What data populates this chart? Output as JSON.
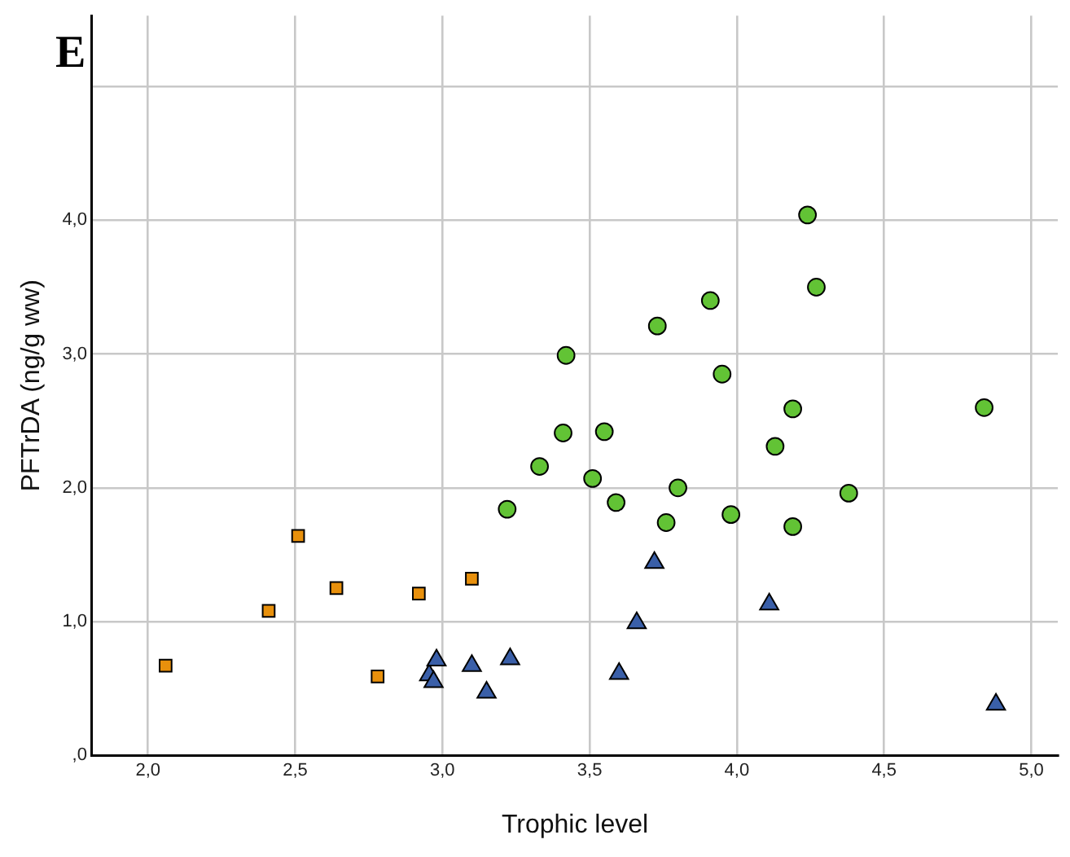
{
  "chart_data": {
    "type": "scatter",
    "title": "E",
    "xlabel": "Trophic level",
    "ylabel": "PFTrDA (ng/g ww)",
    "xlim": [
      1.81,
      5.09
    ],
    "ylim": [
      0,
      5.53
    ],
    "xticks": [
      {
        "value": 2,
        "label": "2,0"
      },
      {
        "value": 2.5,
        "label": "2,5"
      },
      {
        "value": 3,
        "label": "3,0"
      },
      {
        "value": 3.5,
        "label": "3,5"
      },
      {
        "value": 4,
        "label": "4,0"
      },
      {
        "value": 4.5,
        "label": "4,5"
      },
      {
        "value": 5,
        "label": "5,0"
      }
    ],
    "yticks": [
      {
        "value": 0,
        "label": ",0"
      },
      {
        "value": 1,
        "label": "1,0"
      },
      {
        "value": 2,
        "label": "2,0"
      },
      {
        "value": 3,
        "label": "3,0"
      },
      {
        "value": 4,
        "label": "4,0"
      },
      {
        "value": 5,
        "label": null
      }
    ],
    "grid": true,
    "legend": false,
    "series": [
      {
        "color": "#e8900c",
        "marker": "square",
        "x": [
          2.06,
          2.41,
          2.51,
          2.64,
          2.78,
          2.92,
          3.1
        ],
        "values": [
          0.67,
          1.08,
          1.64,
          1.25,
          0.59,
          1.21,
          1.32
        ]
      },
      {
        "color": "#3a5fa8",
        "marker": "triangle",
        "x": [
          2.955,
          2.97,
          2.98,
          3.1,
          3.15,
          3.23,
          3.6,
          3.66,
          3.72,
          4.11,
          4.88
        ],
        "values": [
          0.6,
          0.55,
          0.71,
          0.67,
          0.47,
          0.72,
          0.61,
          0.99,
          1.44,
          1.13,
          0.38
        ]
      },
      {
        "color": "#62c335",
        "marker": "circle",
        "x": [
          3.22,
          3.33,
          3.41,
          3.42,
          3.51,
          3.55,
          3.59,
          3.76,
          3.8,
          3.73,
          3.91,
          3.95,
          3.98,
          4.13,
          4.19,
          4.19,
          4.24,
          4.27,
          4.38,
          4.84
        ],
        "values": [
          1.84,
          2.16,
          2.41,
          2.99,
          2.07,
          2.42,
          1.89,
          1.74,
          2.0,
          3.21,
          3.4,
          2.85,
          1.8,
          2.31,
          2.59,
          1.71,
          4.04,
          3.5,
          1.96,
          2.6
        ]
      }
    ]
  }
}
